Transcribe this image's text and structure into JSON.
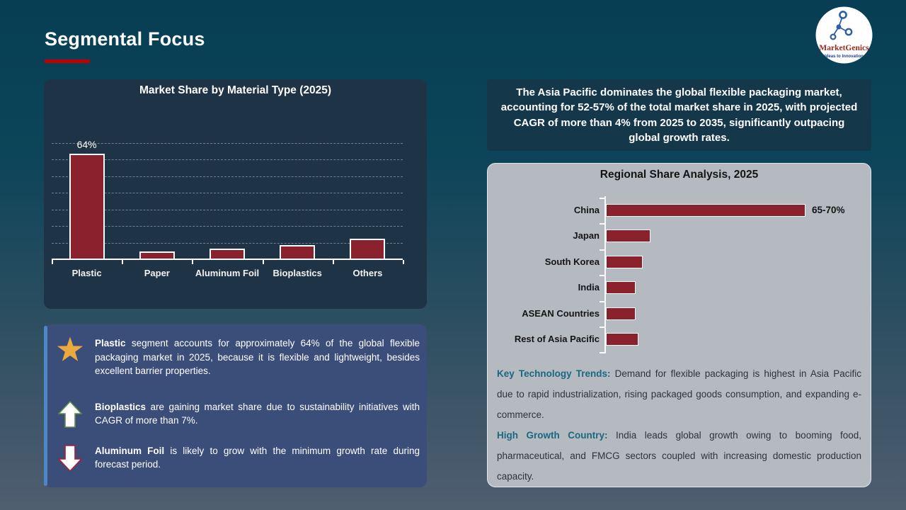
{
  "slide": {
    "title": "Segmental Focus",
    "accent_color": "#c00000"
  },
  "logo": {
    "name": "MarketGenics",
    "tagline": "Ideas to Innovation",
    "name_color": "#9c2a1d",
    "icon": "network-molecule-icon",
    "icon_color": "#2e5fa3"
  },
  "insights": {
    "items": [
      {
        "icon": "star-icon",
        "bold": "Plastic",
        "text": " segment accounts for approximately 64% of the global flexible packaging market in 2025, because it is flexible and lightweight, besides excellent barrier properties."
      },
      {
        "icon": "arrow-up-icon",
        "bold": "Bioplastics",
        "text": " are gaining market share due to sustainability initiatives with CAGR of more than 7%."
      },
      {
        "icon": "arrow-down-icon",
        "bold": "Aluminum Foil",
        "text": " is likely to grow with the minimum growth rate during forecast period."
      }
    ],
    "star_color": "#ecaa3e",
    "arrow_up_outline": "#5d8f4a",
    "arrow_down_outline": "#a51f35"
  },
  "apac_callout": "The Asia Pacific dominates the global flexible packaging market, accounting for 52-57% of the total market share in 2025, with projected CAGR of more than 4% from 2025 to 2035, significantly outpacing global growth rates.",
  "regional_notes": [
    {
      "heading": "Key Technology Trends:",
      "text": " Demand for flexible packaging is highest in Asia Pacific due to rapid industrialization, rising packaged goods consumption, and expanding e-commerce."
    },
    {
      "heading": "High Growth Country:",
      "text": " India leads global growth owing to booming food, pharmaceutical, and FMCG sectors coupled with increasing domestic production capacity."
    }
  ],
  "chart_data": [
    {
      "type": "bar",
      "title": "Market Share by Material Type (2025)",
      "categories": [
        "Plastic",
        "Paper",
        "Aluminum Foil",
        "Bioplastics",
        "Others"
      ],
      "values": [
        64,
        5,
        7,
        9,
        13
      ],
      "data_labels": [
        "64%",
        "",
        "",
        "",
        ""
      ],
      "xlabel": "",
      "ylabel": "",
      "ylim": [
        0,
        70
      ],
      "grid_step": 10,
      "grid": "dashed horizontal",
      "bar_color": "#8a212c",
      "bar_border_color": "#ffffff"
    },
    {
      "type": "bar-horizontal",
      "title": "Regional Share Analysis, 2025",
      "categories": [
        "China",
        "Japan",
        "South Korea",
        "India",
        "ASEAN Countries",
        "Rest of Asia Pacific"
      ],
      "values": [
        67.5,
        15,
        12.5,
        10,
        10,
        11
      ],
      "data_labels": [
        "65-70%",
        "",
        "",
        "",
        "",
        ""
      ],
      "xlabel": "",
      "ylabel": "",
      "xlim": [
        0,
        85
      ],
      "grid": "off",
      "bar_color": "#8a212c",
      "bar_border_color": "#ffffff"
    }
  ]
}
